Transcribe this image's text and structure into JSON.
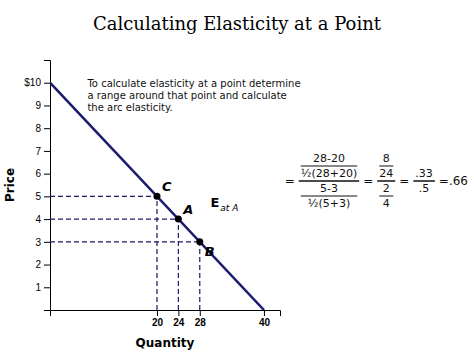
{
  "chart_data": {
    "type": "line",
    "title": "Calculating Elasticity at a Point",
    "x_label": "Quantity",
    "y_label": "Price",
    "xlim": [
      0,
      43
    ],
    "ylim": [
      0,
      11
    ],
    "xticks": [
      20,
      24,
      28,
      40
    ],
    "yticks": [
      1,
      2,
      3,
      4,
      5,
      6,
      7,
      8,
      9,
      {
        "value": 10,
        "label": "$10"
      }
    ],
    "grid": false,
    "series": [
      {
        "type": "line",
        "color": "#1a1a6e",
        "x": [
          0,
          40
        ],
        "values": [
          10,
          0
        ]
      },
      {
        "type": "drop_lines",
        "color": "#1a1a6e",
        "line_style": "dashed",
        "x": [
          20,
          24,
          28
        ],
        "values": [
          5,
          4,
          3
        ]
      },
      {
        "type": "scatter",
        "color": "black",
        "marker": "circle",
        "x": [
          24,
          28,
          20
        ],
        "values": [
          4,
          3,
          5
        ],
        "labels": [
          "A",
          "B",
          "C"
        ]
      }
    ],
    "annotations": [
      {
        "text": "To calculate elasticity at a point determine\na range around that point and calculate\nthe arc elasticity."
      },
      {
        "text": "E",
        "subscript": "at A"
      }
    ],
    "formula": [
      "=",
      [
        "28-20",
        "½(28+20)",
        "5-3",
        "½(5+3)"
      ],
      "=",
      [
        "8",
        "24",
        "2",
        "4"
      ],
      "=",
      [
        ".33",
        ".5"
      ],
      "=.66"
    ]
  }
}
